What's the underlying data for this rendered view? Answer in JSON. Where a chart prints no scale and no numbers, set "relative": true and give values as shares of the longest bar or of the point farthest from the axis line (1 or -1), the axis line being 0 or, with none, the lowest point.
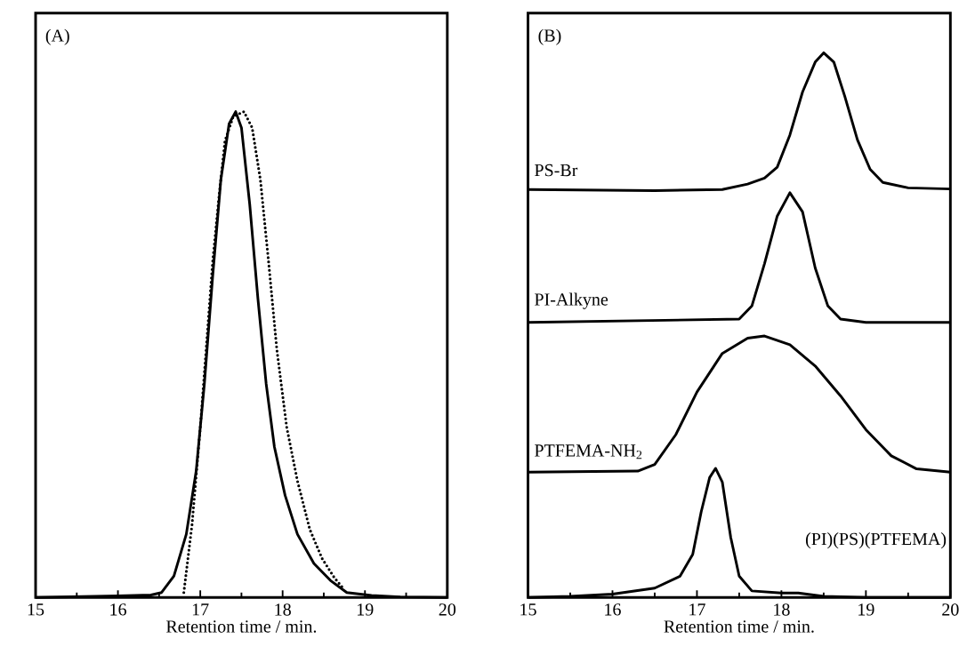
{
  "chart_data": [
    {
      "type": "line",
      "relative": true,
      "xlim": [
        15,
        20
      ],
      "xticks": [
        15,
        16,
        17,
        18,
        19,
        20
      ],
      "xlabel": "Retention time / min.",
      "annotations": [
        "(A)"
      ],
      "series": [
        {
          "color": "#000000",
          "line_style": "solid",
          "x": [
            15,
            16,
            16.4,
            16.53,
            16.68,
            16.83,
            16.95,
            17.05,
            17.15,
            17.25,
            17.35,
            17.43,
            17.5,
            17.6,
            17.7,
            17.8,
            17.9,
            18.03,
            18.18,
            18.38,
            18.58,
            18.78,
            19.08,
            19.43,
            20
          ],
          "values": [
            0,
            0.003,
            0.005,
            0.01,
            0.044,
            0.13,
            0.26,
            0.44,
            0.66,
            0.86,
            0.975,
            1,
            0.967,
            0.81,
            0.615,
            0.44,
            0.31,
            0.21,
            0.13,
            0.07,
            0.035,
            0.01,
            0.004,
            0.001,
            0
          ]
        },
        {
          "color": "#000000",
          "line_style": "dotted",
          "x": [
            16.8,
            16.9,
            17.0,
            17.08,
            17.15,
            17.23,
            17.3,
            17.4,
            17.53,
            17.63,
            17.73,
            17.83,
            17.93,
            18.05,
            18.18,
            18.33,
            18.48,
            18.63,
            18.73
          ],
          "values": [
            0.01,
            0.15,
            0.35,
            0.53,
            0.69,
            0.83,
            0.94,
            0.99,
            1.0,
            0.967,
            0.86,
            0.69,
            0.51,
            0.35,
            0.24,
            0.14,
            0.08,
            0.04,
            0.02
          ]
        }
      ]
    },
    {
      "type": "line",
      "relative": true,
      "xlim": [
        15,
        20
      ],
      "xticks": [
        15,
        16,
        17,
        18,
        19,
        20
      ],
      "xlabel": "Retention time / min.",
      "annotations": [
        "(B)"
      ],
      "series": [
        {
          "name": "PS-Br",
          "color": "#000000",
          "x": [
            15,
            16.5,
            17.3,
            17.6,
            17.8,
            17.95,
            18.1,
            18.25,
            18.4,
            18.5,
            18.62,
            18.75,
            18.9,
            19.05,
            19.2,
            19.5,
            20
          ],
          "values": [
            0.749,
            0.747,
            0.749,
            0.759,
            0.77,
            0.79,
            0.849,
            0.928,
            0.983,
            1.0,
            0.983,
            0.92,
            0.84,
            0.786,
            0.762,
            0.752,
            0.75
          ]
        },
        {
          "name": "PI-Alkyne",
          "color": "#000000",
          "x": [
            15,
            17.5,
            17.65,
            17.8,
            17.95,
            18.1,
            18.25,
            18.4,
            18.55,
            18.7,
            19,
            20
          ],
          "values": [
            0.505,
            0.511,
            0.535,
            0.613,
            0.7,
            0.743,
            0.708,
            0.605,
            0.535,
            0.511,
            0.505,
            0.505
          ]
        },
        {
          "name": "PTFEMA-NH$_{2}$",
          "color": "#000000",
          "x": [
            15,
            16.3,
            16.5,
            16.75,
            17.0,
            17.3,
            17.6,
            17.8,
            18.1,
            18.4,
            18.7,
            19.0,
            19.3,
            19.6,
            20
          ],
          "values": [
            0.23,
            0.232,
            0.244,
            0.299,
            0.377,
            0.448,
            0.476,
            0.48,
            0.464,
            0.425,
            0.37,
            0.308,
            0.26,
            0.236,
            0.23
          ]
        },
        {
          "name": "(PI)(PS)(PTFEMA)",
          "color": "#000000",
          "x": [
            15,
            15.5,
            16.0,
            16.5,
            16.8,
            16.95,
            17.05,
            17.15,
            17.22,
            17.3,
            17.4,
            17.5,
            17.65,
            18.0,
            18.2,
            18.5,
            19,
            20
          ],
          "values": [
            0,
            0.002,
            0.006,
            0.017,
            0.039,
            0.079,
            0.157,
            0.22,
            0.237,
            0.212,
            0.11,
            0.039,
            0.012,
            0.008,
            0.008,
            0.002,
            0,
            0
          ]
        }
      ]
    }
  ]
}
